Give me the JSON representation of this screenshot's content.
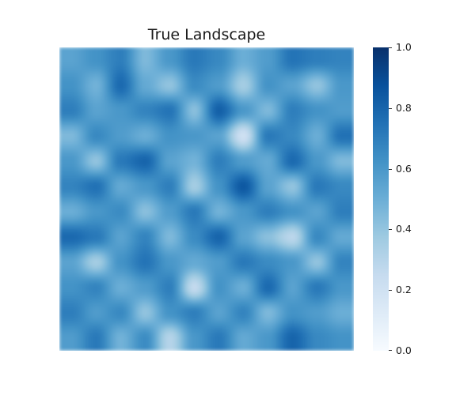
{
  "chart_data": {
    "type": "heatmap",
    "title": "True Landscape",
    "colormap": "Blues",
    "colormap_stops": [
      "#f7fbff",
      "#deebf7",
      "#c6dbef",
      "#9ecae1",
      "#6baed6",
      "#4292c6",
      "#2171b5",
      "#08519c",
      "#08306b"
    ],
    "value_range": [
      0,
      1
    ],
    "colorbar": {
      "ticks": [
        0.0,
        0.2,
        0.4,
        0.6,
        0.8,
        1.0
      ],
      "tick_labels": [
        "0.0",
        "0.2",
        "0.4",
        "0.6",
        "0.8",
        "1.0"
      ],
      "placement": "right"
    },
    "rows": 12,
    "cols": 12,
    "values": [
      [
        0.55,
        0.62,
        0.7,
        0.45,
        0.6,
        0.72,
        0.66,
        0.5,
        0.58,
        0.74,
        0.7,
        0.68
      ],
      [
        0.62,
        0.48,
        0.78,
        0.52,
        0.4,
        0.65,
        0.58,
        0.35,
        0.62,
        0.55,
        0.4,
        0.6
      ],
      [
        0.7,
        0.55,
        0.6,
        0.68,
        0.74,
        0.42,
        0.82,
        0.6,
        0.45,
        0.7,
        0.62,
        0.58
      ],
      [
        0.45,
        0.66,
        0.58,
        0.5,
        0.62,
        0.6,
        0.55,
        0.2,
        0.72,
        0.66,
        0.5,
        0.75
      ],
      [
        0.6,
        0.4,
        0.72,
        0.8,
        0.55,
        0.48,
        0.7,
        0.58,
        0.52,
        0.78,
        0.6,
        0.45
      ],
      [
        0.68,
        0.75,
        0.52,
        0.6,
        0.7,
        0.35,
        0.62,
        0.85,
        0.55,
        0.4,
        0.72,
        0.66
      ],
      [
        0.5,
        0.6,
        0.65,
        0.42,
        0.58,
        0.72,
        0.48,
        0.6,
        0.7,
        0.62,
        0.55,
        0.7
      ],
      [
        0.78,
        0.72,
        0.55,
        0.68,
        0.45,
        0.65,
        0.8,
        0.55,
        0.42,
        0.28,
        0.66,
        0.52
      ],
      [
        0.55,
        0.35,
        0.62,
        0.74,
        0.6,
        0.52,
        0.58,
        0.72,
        0.65,
        0.6,
        0.4,
        0.68
      ],
      [
        0.62,
        0.68,
        0.5,
        0.58,
        0.7,
        0.25,
        0.62,
        0.5,
        0.78,
        0.55,
        0.72,
        0.6
      ],
      [
        0.7,
        0.58,
        0.66,
        0.4,
        0.62,
        0.7,
        0.55,
        0.68,
        0.45,
        0.62,
        0.58,
        0.5
      ],
      [
        0.58,
        0.72,
        0.48,
        0.65,
        0.3,
        0.6,
        0.72,
        0.52,
        0.6,
        0.8,
        0.66,
        0.62
      ]
    ]
  }
}
